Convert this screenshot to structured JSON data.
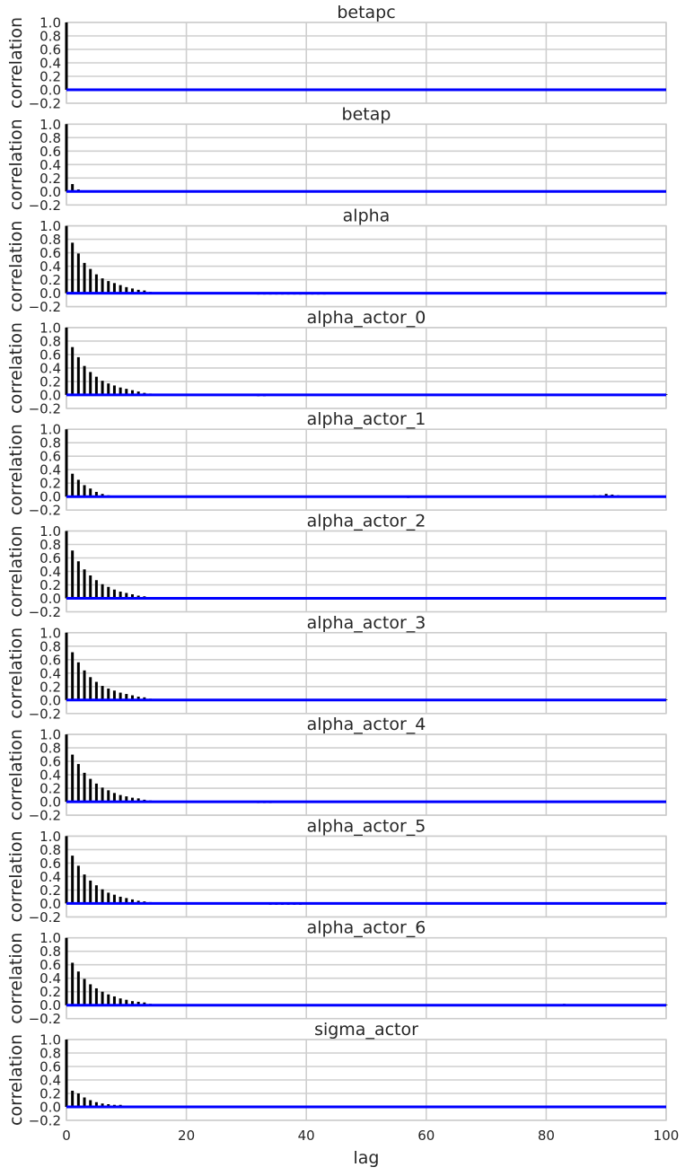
{
  "chart_data": {
    "type": "bar",
    "xlabel": "lag",
    "ylabel": "correlation",
    "xlim": [
      0,
      100
    ],
    "ylim": [
      -0.2,
      1.0
    ],
    "xticks": [
      0,
      20,
      40,
      60,
      80,
      100
    ],
    "yticks": [
      -0.2,
      0.0,
      0.2,
      0.4,
      0.6,
      0.8,
      1.0
    ],
    "grid": true,
    "line_color": "#0000ff",
    "bar_color": "#000000",
    "panels": [
      {
        "title": "betapc",
        "values": [
          1.0,
          -0.01,
          0.02,
          0.0,
          0.01,
          -0.01,
          0.0,
          0.01,
          0.01,
          0.0,
          0.0,
          -0.01,
          0.0,
          0.0,
          0.0,
          0.0,
          0.0,
          0.01,
          0.0,
          0.0,
          0.0,
          0.0,
          -0.01,
          0.0,
          0.0,
          0.0,
          0.0,
          0.0,
          0.0,
          0.0,
          0.0,
          0.0,
          0.0,
          0.0,
          0.0,
          0.0,
          0.01,
          0.0,
          0.0,
          0.0,
          0.0,
          0.0,
          0.0,
          0.0,
          0.0,
          0.0,
          0.0,
          0.0,
          0.0,
          0.0,
          0.0,
          0.0,
          0.0,
          0.0,
          0.01,
          0.01,
          0.0,
          0.0,
          0.0,
          0.0,
          0.0,
          0.0,
          0.0,
          0.0,
          0.0,
          0.0,
          0.0,
          0.0,
          0.0,
          0.0,
          0.0,
          0.0,
          0.01,
          0.0,
          0.0,
          0.0,
          0.0,
          0.0,
          0.0,
          0.0,
          0.0,
          0.0,
          0.0,
          0.0,
          0.0,
          0.0,
          0.0,
          0.0,
          0.0,
          0.0,
          0.0,
          0.0,
          0.0,
          0.0,
          0.0,
          0.0,
          0.0,
          0.0,
          0.0,
          0.0,
          0.0
        ]
      },
      {
        "title": "betap",
        "values": [
          1.0,
          0.11,
          0.03,
          0.0,
          0.0,
          0.0,
          0.0,
          0.0,
          0.0,
          0.0,
          0.0,
          0.0,
          0.0,
          0.0,
          0.0,
          0.0,
          0.0,
          0.0,
          0.0,
          0.0,
          -0.01,
          0.0,
          0.0,
          0.0,
          0.0,
          0.0,
          0.0,
          0.0,
          0.0,
          0.0,
          0.0,
          0.0,
          0.0,
          0.0,
          0.0,
          0.0,
          0.01,
          0.01,
          0.0,
          0.0,
          0.0,
          -0.01,
          -0.01,
          0.0,
          0.0,
          0.0,
          0.0,
          -0.01,
          0.0,
          0.0,
          0.0,
          0.0,
          0.0,
          0.0,
          0.0,
          0.0,
          0.0,
          0.0,
          0.0,
          0.0,
          0.0,
          0.0,
          0.0,
          0.0,
          0.0,
          0.0,
          0.0,
          0.0,
          0.0,
          0.0,
          0.0,
          0.0,
          0.0,
          0.0,
          0.0,
          0.0,
          0.0,
          0.0,
          0.0,
          0.0,
          0.0,
          0.0,
          0.0,
          0.0,
          0.0,
          0.0,
          0.0,
          0.0,
          0.0,
          0.0,
          0.0,
          0.0,
          0.0,
          0.01,
          0.0,
          0.0,
          0.0,
          0.0,
          0.0,
          0.0,
          0.0
        ]
      },
      {
        "title": "alpha",
        "values": [
          1.0,
          0.75,
          0.59,
          0.45,
          0.36,
          0.28,
          0.22,
          0.18,
          0.15,
          0.12,
          0.09,
          0.07,
          0.05,
          0.04,
          0.02,
          0.01,
          0.0,
          0.0,
          0.0,
          0.0,
          0.0,
          0.0,
          0.0,
          0.0,
          0.0,
          -0.01,
          -0.01,
          -0.01,
          0.0,
          0.0,
          -0.01,
          -0.01,
          -0.02,
          -0.02,
          -0.02,
          -0.02,
          -0.02,
          -0.02,
          -0.02,
          -0.02,
          -0.02,
          -0.02,
          -0.02,
          -0.02,
          -0.01,
          -0.01,
          0.0,
          0.0,
          0.0,
          0.0,
          0.0,
          0.0,
          0.0,
          0.0,
          0.0,
          0.0,
          0.0,
          0.0,
          0.0,
          0.0,
          0.0,
          0.0,
          0.0,
          0.01,
          0.0,
          0.0,
          0.0,
          0.0,
          0.0,
          0.0,
          0.0,
          0.0,
          0.0,
          0.0,
          0.0,
          0.0,
          0.0,
          0.0,
          0.0,
          0.0,
          0.0,
          0.0,
          0.01,
          0.01,
          0.01,
          0.0,
          0.0,
          0.0,
          0.0,
          0.0,
          0.0,
          0.0,
          0.0,
          0.0,
          0.0,
          0.0,
          0.0,
          0.0,
          0.0,
          0.01,
          0.01
        ]
      },
      {
        "title": "alpha_actor_0",
        "values": [
          1.0,
          0.71,
          0.56,
          0.43,
          0.34,
          0.27,
          0.21,
          0.17,
          0.14,
          0.11,
          0.09,
          0.07,
          0.05,
          0.03,
          0.02,
          0.01,
          0.01,
          0.0,
          0.0,
          0.0,
          0.0,
          0.0,
          0.0,
          0.0,
          0.0,
          0.0,
          0.0,
          0.0,
          0.0,
          0.0,
          0.0,
          -0.01,
          -0.02,
          -0.02,
          -0.01,
          0.0,
          0.0,
          0.0,
          0.0,
          0.0,
          0.0,
          0.0,
          0.0,
          0.0,
          0.0,
          0.0,
          0.0,
          0.0,
          0.0,
          0.0,
          0.0,
          0.0,
          0.0,
          0.0,
          0.0,
          0.0,
          0.0,
          0.0,
          0.0,
          0.0,
          0.0,
          0.01,
          0.01,
          0.01,
          0.01,
          0.01,
          0.01,
          0.01,
          0.01,
          0.01,
          0.0,
          0.0,
          0.0,
          0.0,
          0.0,
          0.01,
          0.0,
          0.0,
          0.0,
          0.0,
          0.0,
          0.0,
          0.01,
          0.01,
          0.01,
          0.0,
          0.0,
          0.0,
          0.0,
          0.0,
          0.0,
          0.0,
          0.0,
          0.0,
          0.0,
          0.0,
          0.0,
          0.01,
          0.01,
          0.01,
          0.01
        ]
      },
      {
        "title": "alpha_actor_1",
        "values": [
          1.0,
          0.34,
          0.25,
          0.17,
          0.12,
          0.07,
          0.04,
          0.02,
          0.01,
          0.0,
          0.0,
          0.0,
          0.0,
          0.0,
          0.0,
          0.0,
          0.0,
          0.01,
          0.01,
          0.01,
          0.0,
          0.0,
          0.01,
          0.0,
          0.0,
          0.0,
          0.0,
          0.0,
          0.0,
          0.0,
          0.0,
          0.0,
          0.0,
          0.0,
          0.0,
          0.0,
          0.0,
          0.0,
          0.0,
          0.0,
          0.0,
          0.0,
          0.0,
          0.0,
          0.0,
          0.0,
          0.0,
          0.0,
          0.0,
          0.0,
          0.0,
          0.0,
          0.0,
          0.0,
          0.0,
          0.0,
          0.0,
          -0.02,
          0.0,
          0.0,
          0.0,
          0.0,
          0.0,
          0.0,
          0.0,
          0.0,
          0.0,
          0.0,
          0.0,
          0.0,
          0.0,
          0.0,
          0.0,
          0.0,
          0.0,
          0.0,
          0.0,
          0.0,
          0.0,
          0.0,
          0.0,
          0.0,
          0.0,
          0.0,
          0.0,
          0.0,
          0.01,
          0.01,
          0.02,
          0.02,
          0.04,
          0.03,
          0.02,
          0.01,
          0.01,
          0.0,
          0.0,
          0.0,
          0.0,
          0.0,
          0.0
        ]
      },
      {
        "title": "alpha_actor_2",
        "values": [
          1.0,
          0.71,
          0.55,
          0.43,
          0.34,
          0.27,
          0.21,
          0.17,
          0.13,
          0.1,
          0.08,
          0.06,
          0.04,
          0.03,
          0.0,
          0.0,
          0.0,
          0.0,
          0.0,
          0.0,
          0.0,
          0.0,
          0.0,
          0.0,
          -0.01,
          -0.01,
          -0.01,
          -0.01,
          -0.01,
          -0.01,
          -0.01,
          -0.02,
          -0.02,
          -0.02,
          -0.02,
          -0.02,
          -0.02,
          -0.02,
          -0.02,
          -0.02,
          -0.01,
          -0.01,
          0.0,
          0.0,
          0.0,
          0.0,
          0.0,
          0.0,
          0.0,
          0.0,
          0.0,
          0.0,
          0.0,
          0.0,
          0.0,
          0.0,
          0.0,
          0.0,
          0.0,
          0.0,
          0.0,
          0.0,
          0.0,
          0.01,
          0.0,
          0.0,
          0.0,
          0.0,
          0.0,
          0.0,
          0.0,
          0.0,
          0.0,
          0.0,
          0.0,
          0.0,
          0.0,
          0.0,
          0.0,
          0.0,
          0.0,
          0.0,
          0.0,
          0.0,
          0.0,
          0.0,
          0.0,
          0.0,
          0.0,
          0.0,
          0.0,
          0.0,
          0.0,
          -0.01,
          0.0,
          0.0,
          0.0,
          0.0,
          0.0,
          0.0,
          0.0
        ]
      },
      {
        "title": "alpha_actor_3",
        "values": [
          1.0,
          0.71,
          0.56,
          0.44,
          0.34,
          0.27,
          0.21,
          0.17,
          0.14,
          0.11,
          0.09,
          0.07,
          0.05,
          0.04,
          0.02,
          0.01,
          0.01,
          0.01,
          0.0,
          0.0,
          0.0,
          0.0,
          0.0,
          0.0,
          0.0,
          0.0,
          0.0,
          0.0,
          0.0,
          0.0,
          0.0,
          -0.01,
          -0.01,
          -0.01,
          -0.01,
          -0.01,
          -0.01,
          -0.01,
          -0.01,
          -0.01,
          0.0,
          0.0,
          0.0,
          0.0,
          0.0,
          0.0,
          0.0,
          0.0,
          0.0,
          0.0,
          0.0,
          0.0,
          0.0,
          0.0,
          0.0,
          0.0,
          0.0,
          0.0,
          0.0,
          0.0,
          0.0,
          0.0,
          0.01,
          0.01,
          0.01,
          0.01,
          0.01,
          0.01,
          0.01,
          0.0,
          0.0,
          0.01,
          0.0,
          0.0,
          0.0,
          0.0,
          0.0,
          0.01,
          0.0,
          0.0,
          0.0,
          0.0,
          0.01,
          0.01,
          0.01,
          0.0,
          0.0,
          0.0,
          0.0,
          0.0,
          0.0,
          0.0,
          0.0,
          0.0,
          0.0,
          0.0,
          0.0,
          0.01,
          0.01,
          0.01,
          0.01
        ]
      },
      {
        "title": "alpha_actor_4",
        "values": [
          1.0,
          0.7,
          0.56,
          0.43,
          0.34,
          0.27,
          0.21,
          0.17,
          0.13,
          0.1,
          0.08,
          0.06,
          0.05,
          0.03,
          0.02,
          0.01,
          0.0,
          0.0,
          0.0,
          0.0,
          0.0,
          0.0,
          0.0,
          0.0,
          0.0,
          0.0,
          0.0,
          0.0,
          0.0,
          0.0,
          0.0,
          -0.01,
          -0.02,
          -0.02,
          -0.02,
          -0.01,
          0.0,
          0.0,
          0.0,
          0.0,
          0.0,
          0.0,
          0.0,
          0.0,
          0.0,
          0.0,
          0.0,
          0.0,
          0.0,
          0.0,
          0.0,
          0.0,
          0.0,
          0.0,
          0.0,
          0.0,
          0.0,
          0.0,
          0.0,
          0.0,
          0.0,
          0.0,
          0.01,
          0.01,
          0.01,
          0.01,
          0.01,
          0.01,
          0.01,
          0.0,
          0.0,
          0.0,
          0.0,
          0.0,
          0.0,
          0.0,
          0.0,
          0.0,
          0.0,
          0.0,
          0.0,
          0.0,
          0.01,
          0.01,
          0.01,
          0.0,
          0.0,
          0.0,
          0.0,
          0.0,
          0.0,
          0.0,
          0.0,
          0.0,
          0.0,
          0.0,
          0.0,
          0.0,
          0.0,
          0.0,
          0.0
        ]
      },
      {
        "title": "alpha_actor_5",
        "values": [
          1.0,
          0.71,
          0.56,
          0.43,
          0.34,
          0.27,
          0.21,
          0.16,
          0.13,
          0.1,
          0.08,
          0.06,
          0.04,
          0.03,
          0.02,
          0.01,
          0.0,
          0.0,
          0.0,
          0.0,
          0.0,
          0.0,
          0.0,
          0.0,
          0.0,
          0.0,
          0.0,
          0.0,
          0.0,
          0.0,
          -0.01,
          -0.01,
          -0.01,
          -0.01,
          -0.02,
          -0.02,
          -0.02,
          -0.02,
          -0.02,
          -0.02,
          -0.01,
          -0.01,
          0.0,
          0.0,
          0.0,
          0.0,
          0.0,
          0.0,
          0.0,
          0.0,
          0.0,
          0.0,
          0.0,
          0.0,
          0.0,
          0.0,
          0.0,
          0.0,
          0.0,
          0.0,
          0.0,
          0.0,
          0.0,
          0.01,
          0.01,
          0.0,
          0.0,
          0.0,
          0.0,
          0.0,
          0.0,
          0.01,
          0.0,
          0.0,
          0.0,
          0.0,
          0.0,
          0.0,
          0.0,
          0.0,
          0.0,
          0.0,
          0.01,
          0.01,
          0.01,
          0.0,
          0.0,
          0.0,
          0.0,
          0.0,
          0.0,
          0.0,
          0.0,
          0.0,
          -0.01,
          0.0,
          0.0,
          0.0,
          0.0,
          0.01,
          0.01
        ]
      },
      {
        "title": "alpha_actor_6",
        "values": [
          1.0,
          0.63,
          0.5,
          0.39,
          0.31,
          0.25,
          0.2,
          0.16,
          0.13,
          0.1,
          0.08,
          0.06,
          0.05,
          0.04,
          0.02,
          0.01,
          0.01,
          0.0,
          0.0,
          0.0,
          0.0,
          0.0,
          0.0,
          0.0,
          0.0,
          0.0,
          0.0,
          0.0,
          0.0,
          0.0,
          0.0,
          -0.01,
          -0.01,
          -0.01,
          -0.01,
          -0.01,
          0.0,
          0.0,
          0.0,
          0.0,
          0.0,
          0.0,
          0.0,
          0.0,
          0.0,
          0.0,
          0.0,
          0.0,
          0.0,
          0.0,
          0.0,
          0.0,
          0.0,
          0.0,
          0.0,
          0.0,
          0.0,
          0.0,
          0.0,
          0.0,
          0.0,
          0.01,
          0.01,
          0.01,
          0.01,
          0.01,
          0.0,
          0.0,
          0.0,
          0.0,
          0.0,
          0.0,
          0.0,
          0.0,
          0.0,
          0.0,
          0.0,
          0.0,
          0.0,
          0.0,
          0.0,
          0.0,
          0.01,
          0.02,
          0.01,
          0.0,
          0.0,
          0.0,
          0.0,
          0.0,
          0.0,
          0.0,
          0.0,
          0.0,
          0.0,
          0.0,
          0.0,
          0.01,
          0.01,
          0.01,
          0.01
        ]
      },
      {
        "title": "sigma_actor",
        "values": [
          1.0,
          0.24,
          0.2,
          0.14,
          0.1,
          0.07,
          0.05,
          0.04,
          0.03,
          0.03,
          0.02,
          0.02,
          0.01,
          0.01,
          0.0,
          0.0,
          0.0,
          0.0,
          0.0,
          0.0,
          0.01,
          0.0,
          0.0,
          0.0,
          0.0,
          0.0,
          0.0,
          0.0,
          0.0,
          0.0,
          0.0,
          0.0,
          0.0,
          0.0,
          0.0,
          0.0,
          0.0,
          0.0,
          0.0,
          0.0,
          0.0,
          0.0,
          0.0,
          0.0,
          0.0,
          0.0,
          0.0,
          0.0,
          0.0,
          0.0,
          0.0,
          0.0,
          0.0,
          0.0,
          0.0,
          0.0,
          0.0,
          0.0,
          0.0,
          0.0,
          0.0,
          0.0,
          0.0,
          0.0,
          0.0,
          0.0,
          0.0,
          0.0,
          0.0,
          0.0,
          0.0,
          -0.01,
          0.0,
          -0.01,
          -0.01,
          0.0,
          0.0,
          -0.01,
          0.0,
          0.0,
          0.0,
          0.0,
          0.0,
          0.0,
          0.0,
          0.0,
          0.0,
          0.0,
          0.0,
          0.01,
          0.01,
          0.0,
          0.0,
          0.0,
          0.0,
          0.0,
          0.0,
          0.0,
          0.0,
          0.0,
          0.0
        ]
      }
    ]
  }
}
